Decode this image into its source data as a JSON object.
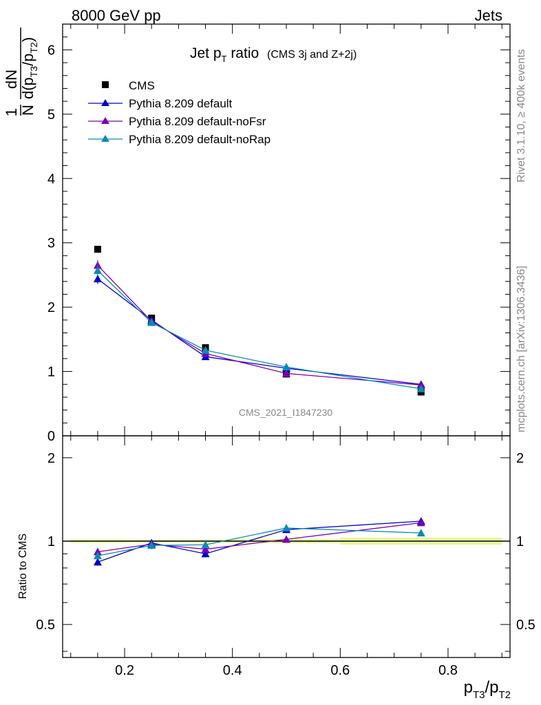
{
  "header": {
    "left": "8000 GeV pp",
    "right": "Jets"
  },
  "side": {
    "rivet": "Rivet 3.1.10, ≥ 400k events",
    "mcplots": "mcplots.cern.ch [arXiv:1306.3436]"
  },
  "analysis_id": "CMS_2021_I1847230",
  "colors": {
    "CMS": "#000000",
    "default": "#0000d0",
    "noFsr": "#7a00b4",
    "noRap": "#0a8ab4",
    "band": "#e6f5a0"
  },
  "chart_data": [
    {
      "type": "line",
      "title_main": "Jet p",
      "title_sub": "T",
      "title_rest": " ratio",
      "title_small": "(CMS 3j and Z+2j)",
      "ylabel": {
        "num": "1",
        "den": "N",
        "dN": "dN",
        "d": "d(p",
        "sub1": "T3",
        "slash": "/p",
        "sub2": "T2",
        "close": ")"
      },
      "ylim": [
        0,
        6.4
      ],
      "yticks": [
        0,
        1,
        2,
        3,
        4,
        5,
        6
      ],
      "xlim": [
        0.085,
        0.915
      ],
      "log_y": false,
      "legend_position": "top-left",
      "series": [
        {
          "key": "CMS",
          "name": "CMS",
          "marker": "square",
          "x": [
            0.15,
            0.25,
            0.35,
            0.5,
            0.75
          ],
          "y": [
            2.9,
            1.83,
            1.37,
            0.96,
            0.68
          ],
          "err": [
            0,
            0,
            0,
            0,
            0
          ]
        },
        {
          "key": "default",
          "name": "Pythia 8.209 default",
          "marker": "triangle",
          "x": [
            0.15,
            0.25,
            0.35,
            0.5,
            0.75
          ],
          "y": [
            2.44,
            1.8,
            1.23,
            1.05,
            0.8
          ],
          "err": [
            0.08,
            0.03,
            0.03,
            0.02,
            0.02
          ]
        },
        {
          "key": "noFsr",
          "name": "Pythia 8.209 default-noFsr",
          "marker": "triangle",
          "x": [
            0.15,
            0.25,
            0.35,
            0.5,
            0.75
          ],
          "y": [
            2.65,
            1.78,
            1.28,
            0.97,
            0.79
          ],
          "err": [
            0.08,
            0.03,
            0.03,
            0.02,
            0.02
          ]
        },
        {
          "key": "noRap",
          "name": "Pythia 8.209 default-noRap",
          "marker": "triangle",
          "x": [
            0.15,
            0.25,
            0.35,
            0.5,
            0.75
          ],
          "y": [
            2.57,
            1.76,
            1.33,
            1.07,
            0.73
          ],
          "err": [
            0.08,
            0.03,
            0.03,
            0.02,
            0.02
          ]
        }
      ]
    },
    {
      "type": "line",
      "ylabel": "Ratio to CMS",
      "log_y": true,
      "ylim": [
        0.38,
        2.4
      ],
      "yticks": [
        0.5,
        1,
        2
      ],
      "ytick_labels": [
        "0.5",
        "1",
        "2"
      ],
      "xlim": [
        0.085,
        0.915
      ],
      "xticks": [
        0.2,
        0.4,
        0.6,
        0.8
      ],
      "xtick_labels": [
        "0.2",
        "0.4",
        "0.6",
        "0.8"
      ],
      "xlabel": {
        "p": "p",
        "sub1": "T3",
        "slash": "/p",
        "sub2": "T2"
      },
      "series": [
        {
          "key": "default",
          "x": [
            0.15,
            0.25,
            0.35,
            0.5,
            0.75
          ],
          "y": [
            0.84,
            0.985,
            0.9,
            1.1,
            1.18
          ],
          "err": [
            0.025,
            0.03,
            0.025,
            0.025,
            0.025
          ]
        },
        {
          "key": "noFsr",
          "x": [
            0.15,
            0.25,
            0.35,
            0.5,
            0.75
          ],
          "y": [
            0.915,
            0.975,
            0.935,
            1.015,
            1.165
          ],
          "err": [
            0.025,
            0.03,
            0.025,
            0.025,
            0.025
          ]
        },
        {
          "key": "noRap",
          "x": [
            0.15,
            0.25,
            0.35,
            0.5,
            0.75
          ],
          "y": [
            0.885,
            0.965,
            0.97,
            1.115,
            1.07
          ],
          "err": [
            0.025,
            0.03,
            0.025,
            0.025,
            0.025
          ]
        }
      ]
    }
  ]
}
